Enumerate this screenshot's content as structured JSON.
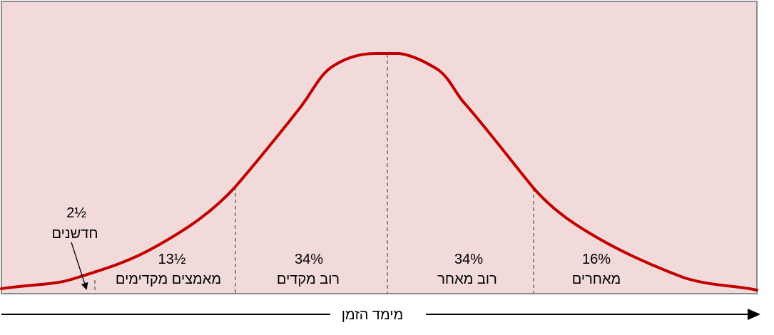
{
  "colors": {
    "panel_fill": "#f2dada",
    "panel_border": "#8c8c8c",
    "curve": "#c00000",
    "dividers": "#707070",
    "axis": "#000000"
  },
  "segments": [
    {
      "percent": "2½",
      "label": "חדשנים"
    },
    {
      "percent": "13½",
      "label": "מאמצים מקדימים"
    },
    {
      "percent": "34%",
      "label": "רוב מקדים"
    },
    {
      "percent": "34%",
      "label": "רוב מאחר"
    },
    {
      "percent": "16%",
      "label": "מאחרים"
    }
  ],
  "axis": {
    "label": "מימד הזמן"
  }
}
